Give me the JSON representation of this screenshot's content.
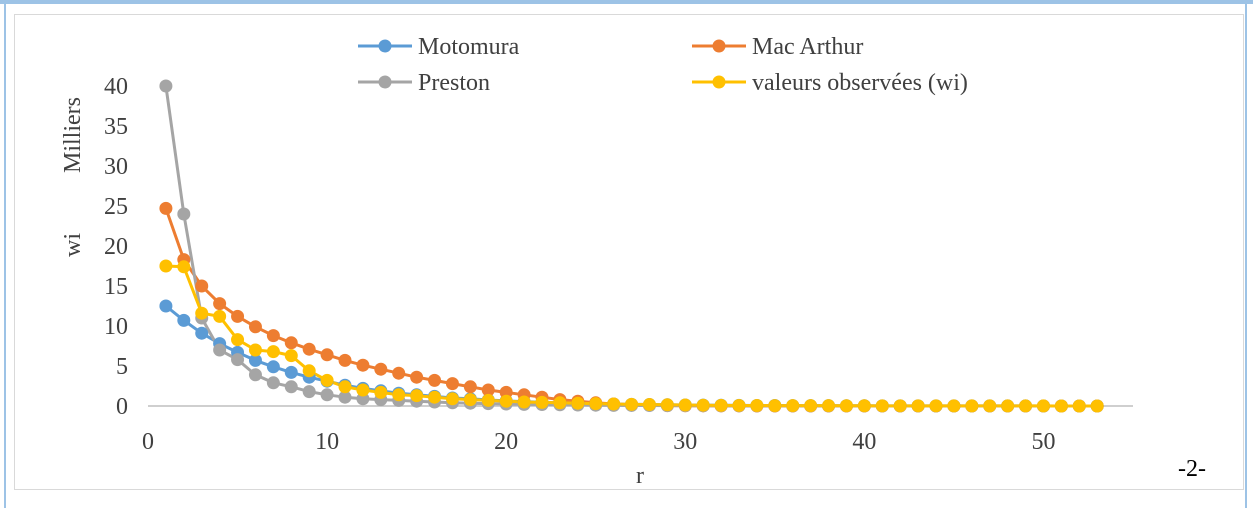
{
  "page_number": "-2-",
  "chart_data": {
    "type": "line",
    "xlabel": "r",
    "ylabel": "wi",
    "y_unit_label": "Milliers",
    "xlim": [
      0,
      55
    ],
    "ylim": [
      0,
      40
    ],
    "x_ticks": [
      0,
      10,
      20,
      30,
      40,
      50
    ],
    "y_ticks": [
      0,
      5,
      10,
      15,
      20,
      25,
      30,
      35,
      40
    ],
    "grid": false,
    "legend_position": "top",
    "x": [
      1,
      2,
      3,
      4,
      5,
      6,
      7,
      8,
      9,
      10,
      11,
      12,
      13,
      14,
      15,
      16,
      17,
      18,
      19,
      20,
      21,
      22,
      23,
      24,
      25,
      26,
      27,
      28,
      29,
      30,
      31,
      32,
      33,
      34,
      35,
      36,
      37,
      38,
      39,
      40,
      41,
      42,
      43,
      44,
      45,
      46,
      47,
      48,
      49,
      50,
      51,
      52,
      53
    ],
    "series": [
      {
        "name": "Motomura",
        "color": "#5b9bd5",
        "values": [
          12.5,
          10.7,
          9.1,
          7.8,
          6.7,
          5.7,
          4.9,
          4.2,
          3.6,
          3.1,
          2.6,
          2.2,
          1.9,
          1.6,
          1.4,
          1.2,
          1.0,
          0.9,
          0.75,
          0.64,
          0.55,
          0.47,
          0.4,
          0.34,
          0.29,
          0.25,
          0.21,
          0.18,
          0.15,
          0.13,
          0.11,
          0.1,
          0.08,
          0.07,
          0.06,
          0.05,
          0.04,
          0.04,
          0.03,
          0.03,
          0.02,
          0.02,
          0.02,
          0.01,
          0.01,
          0.01,
          0.01,
          0.01,
          0.01,
          0.0,
          0.0,
          0.0,
          0.0
        ]
      },
      {
        "name": "Mac Arthur",
        "color": "#ed7d31",
        "values": [
          24.7,
          18.3,
          15.0,
          12.8,
          11.2,
          9.9,
          8.8,
          7.9,
          7.1,
          6.4,
          5.7,
          5.1,
          4.6,
          4.1,
          3.6,
          3.2,
          2.8,
          2.4,
          2.0,
          1.7,
          1.4,
          1.1,
          0.8,
          0.6,
          0.4,
          0.25,
          0.15,
          0.1,
          0.05,
          0.03,
          0.02,
          0.01,
          0.01,
          0.0,
          0.0,
          0.0,
          0.0,
          0.0,
          0.0,
          0.0,
          0.0,
          0.0,
          0.0,
          0.0,
          0.0,
          0.0,
          0.0,
          0.0,
          0.0,
          0.0,
          0.0,
          0.0,
          0.0
        ]
      },
      {
        "name": "Preston",
        "color": "#a5a5a5",
        "values": [
          40.0,
          24.0,
          11.0,
          7.0,
          5.8,
          3.9,
          2.9,
          2.4,
          1.8,
          1.4,
          1.1,
          0.9,
          0.8,
          0.7,
          0.6,
          0.5,
          0.4,
          0.35,
          0.3,
          0.25,
          0.2,
          0.18,
          0.15,
          0.12,
          0.1,
          0.08,
          0.07,
          0.06,
          0.05,
          0.04,
          0.03,
          0.03,
          0.02,
          0.02,
          0.02,
          0.01,
          0.01,
          0.01,
          0.01,
          0.01,
          0.0,
          0.0,
          0.0,
          0.0,
          0.0,
          0.0,
          0.0,
          0.0,
          0.0,
          0.0,
          0.0,
          0.0,
          0.0
        ]
      },
      {
        "name": "valeurs observées (wi)",
        "color": "#ffc000",
        "values": [
          17.5,
          17.4,
          11.6,
          11.2,
          8.3,
          7.0,
          6.8,
          6.3,
          4.4,
          3.2,
          2.4,
          2.0,
          1.7,
          1.4,
          1.3,
          1.1,
          0.9,
          0.8,
          0.7,
          0.6,
          0.5,
          0.45,
          0.4,
          0.35,
          0.3,
          0.25,
          0.2,
          0.18,
          0.15,
          0.12,
          0.1,
          0.08,
          0.07,
          0.06,
          0.05,
          0.05,
          0.04,
          0.04,
          0.03,
          0.03,
          0.02,
          0.02,
          0.02,
          0.02,
          0.01,
          0.01,
          0.01,
          0.01,
          0.01,
          0.01,
          0.0,
          0.0,
          0.0
        ]
      }
    ]
  }
}
